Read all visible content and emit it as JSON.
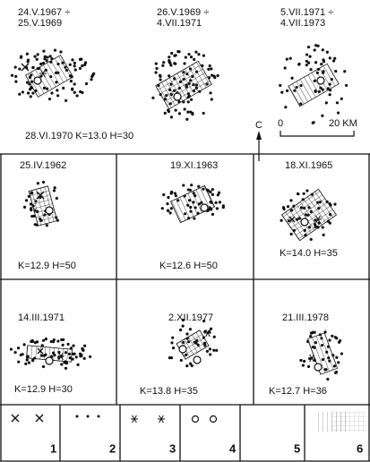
{
  "top_panels": [
    {
      "date_lines": [
        "24.V.1967 ÷",
        "25.V.1969"
      ]
    },
    {
      "date_lines": [
        "26.V.1969 ÷",
        "4.VII.1971"
      ]
    },
    {
      "date_lines": [
        "5.VII.1971 ÷",
        "4.VII.1973"
      ]
    }
  ],
  "top_event": "28.VI.1970  K=13.0  H=30",
  "north_label": "C",
  "scale": {
    "start": "0",
    "end": "20 KM"
  },
  "panels": [
    {
      "date": "25.IV.1962",
      "params": "K=12.9  H=50"
    },
    {
      "date": "19.XI.1963",
      "params": "K=12.6  H=50"
    },
    {
      "date": "18.XI.1965",
      "params": "K=14.0  H=35"
    },
    {
      "date": "14.III.1971",
      "params": "K=12.9  H=30"
    },
    {
      "date": "2.XII.1977",
      "params": "K=13.8  H=35"
    },
    {
      "date": "21.III.1978",
      "params": "K=12.7  H=36"
    }
  ],
  "legend": [
    "1",
    "2",
    "3",
    "4",
    "5",
    "6"
  ]
}
